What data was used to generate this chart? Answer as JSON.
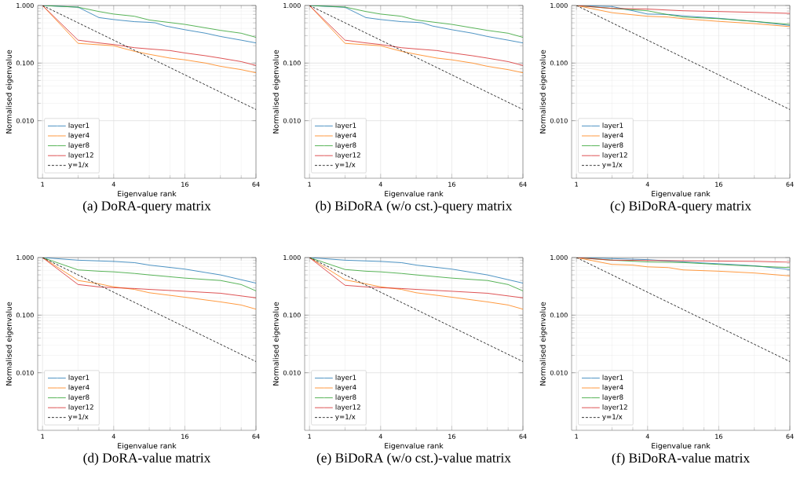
{
  "chart_data": [
    {
      "type": "line",
      "title": "(a) DoRA-query matrix",
      "xlabel": "Eigenvalue rank",
      "ylabel": "Normalised eigenvalue",
      "log": "xy",
      "grid": true,
      "legend": "bottom left",
      "xlim": [
        0.91,
        64
      ],
      "ylim": [
        0.001,
        1
      ],
      "xticks": [
        1,
        4,
        16,
        64
      ],
      "yticks": [
        {
          "value": 0.01,
          "label": "0.010"
        },
        {
          "value": 0.1,
          "label": "0.100"
        },
        {
          "value": 1,
          "label": "1.000"
        }
      ],
      "series": [
        {
          "name": "layer1",
          "color": "#1f77b4",
          "x": [
            1,
            2,
            3,
            4,
            6,
            8,
            9,
            11,
            16,
            24,
            32,
            48,
            64
          ],
          "values": [
            1.0,
            0.935,
            0.617,
            0.57,
            0.524,
            0.51,
            0.5,
            0.44,
            0.38,
            0.33,
            0.29,
            0.25,
            0.224
          ]
        },
        {
          "name": "layer4",
          "color": "#ff7f0e",
          "x": [
            1,
            2,
            4,
            6,
            8,
            12,
            16,
            24,
            32,
            48,
            64
          ],
          "values": [
            1.0,
            0.22,
            0.2,
            0.16,
            0.142,
            0.122,
            0.114,
            0.1,
            0.088,
            0.077,
            0.068
          ]
        },
        {
          "name": "layer8",
          "color": "#2ca02c",
          "x": [
            1,
            2,
            3,
            4,
            6,
            8,
            16,
            32,
            48,
            64
          ],
          "values": [
            1.0,
            0.935,
            0.786,
            0.71,
            0.65,
            0.56,
            0.47,
            0.37,
            0.33,
            0.28
          ]
        },
        {
          "name": "layer12",
          "color": "#d62728",
          "x": [
            1,
            2,
            3,
            4,
            6,
            8,
            12,
            16,
            24,
            32,
            48,
            64
          ],
          "values": [
            1.0,
            0.25,
            0.224,
            0.21,
            0.185,
            0.176,
            0.165,
            0.15,
            0.134,
            0.122,
            0.106,
            0.091
          ]
        },
        {
          "name": "y=1/x",
          "color": "#000000",
          "line_style": "dashed",
          "x": [
            1,
            64
          ],
          "values": [
            1.0,
            0.015625
          ]
        }
      ]
    },
    {
      "type": "line",
      "title": "(b) BiDoRA (w/o cst.)-query matrix",
      "xlabel": "Eigenvalue rank",
      "ylabel": "Normalised eigenvalue",
      "log": "xy",
      "grid": true,
      "legend": "bottom left",
      "xlim": [
        0.91,
        64
      ],
      "ylim": [
        0.001,
        1
      ],
      "xticks": [
        1,
        4,
        16,
        64
      ],
      "yticks": [
        {
          "value": 0.01,
          "label": "0.010"
        },
        {
          "value": 0.1,
          "label": "0.100"
        },
        {
          "value": 1,
          "label": "1.000"
        }
      ],
      "series": [
        {
          "name": "layer1",
          "color": "#1f77b4",
          "x": [
            1,
            2,
            3,
            4,
            6,
            8,
            9,
            11,
            16,
            24,
            32,
            48,
            64
          ],
          "values": [
            1.0,
            0.93,
            0.617,
            0.57,
            0.524,
            0.51,
            0.5,
            0.44,
            0.38,
            0.33,
            0.29,
            0.25,
            0.224
          ]
        },
        {
          "name": "layer4",
          "color": "#ff7f0e",
          "x": [
            1,
            2,
            4,
            6,
            8,
            12,
            16,
            24,
            32,
            48,
            64
          ],
          "values": [
            1.0,
            0.22,
            0.2,
            0.16,
            0.142,
            0.122,
            0.114,
            0.1,
            0.088,
            0.077,
            0.068
          ]
        },
        {
          "name": "layer8",
          "color": "#2ca02c",
          "x": [
            1,
            2,
            3,
            4,
            6,
            8,
            16,
            32,
            48,
            64
          ],
          "values": [
            1.0,
            0.94,
            0.786,
            0.71,
            0.65,
            0.56,
            0.47,
            0.37,
            0.33,
            0.28
          ]
        },
        {
          "name": "layer12",
          "color": "#d62728",
          "x": [
            1,
            2,
            3,
            4,
            6,
            8,
            12,
            16,
            24,
            32,
            48,
            64
          ],
          "values": [
            1.0,
            0.25,
            0.224,
            0.21,
            0.185,
            0.176,
            0.165,
            0.15,
            0.134,
            0.122,
            0.106,
            0.091
          ]
        },
        {
          "name": "y=1/x",
          "color": "#000000",
          "line_style": "dashed",
          "x": [
            1,
            64
          ],
          "values": [
            1.0,
            0.015625
          ]
        }
      ]
    },
    {
      "type": "line",
      "title": "(c) BiDoRA-query matrix",
      "xlabel": "Eigenvalue rank",
      "ylabel": "Normalised eigenvalue",
      "log": "xy",
      "grid": true,
      "legend": "bottom left",
      "xlim": [
        0.91,
        64
      ],
      "ylim": [
        0.001,
        1
      ],
      "xticks": [
        1,
        4,
        16,
        64
      ],
      "yticks": [
        {
          "value": 0.01,
          "label": "0.010"
        },
        {
          "value": 0.1,
          "label": "0.100"
        },
        {
          "value": 1,
          "label": "1.000"
        }
      ],
      "series": [
        {
          "name": "layer1",
          "color": "#1f77b4",
          "x": [
            1,
            2,
            3,
            4,
            6,
            8,
            16,
            32,
            64
          ],
          "values": [
            1.0,
            0.96,
            0.81,
            0.71,
            0.7,
            0.66,
            0.6,
            0.53,
            0.45
          ]
        },
        {
          "name": "layer4",
          "color": "#ff7f0e",
          "x": [
            1,
            2,
            4,
            6,
            8,
            16,
            32,
            64
          ],
          "values": [
            1.0,
            0.75,
            0.65,
            0.63,
            0.59,
            0.53,
            0.485,
            0.43
          ]
        },
        {
          "name": "layer8",
          "color": "#2ca02c",
          "x": [
            1,
            2,
            4,
            6,
            8,
            16,
            32,
            64
          ],
          "values": [
            1.0,
            0.89,
            0.81,
            0.69,
            0.63,
            0.59,
            0.53,
            0.47
          ]
        },
        {
          "name": "layer12",
          "color": "#d62728",
          "x": [
            1,
            2,
            4,
            8,
            16,
            32,
            64
          ],
          "values": [
            1.0,
            0.89,
            0.865,
            0.81,
            0.786,
            0.76,
            0.73
          ]
        },
        {
          "name": "y=1/x",
          "color": "#000000",
          "line_style": "dashed",
          "x": [
            1,
            64
          ],
          "values": [
            1.0,
            0.015625
          ]
        }
      ]
    },
    {
      "type": "line",
      "title": "(d) DoRA-value matrix",
      "xlabel": "Eigenvalue rank",
      "ylabel": "Normalised eigenvalue",
      "log": "xy",
      "grid": true,
      "legend": "bottom left",
      "xlim": [
        0.91,
        64
      ],
      "ylim": [
        0.001,
        1
      ],
      "xticks": [
        1,
        4,
        16,
        64
      ],
      "yticks": [
        {
          "value": 0.01,
          "label": "0.010"
        },
        {
          "value": 0.1,
          "label": "0.100"
        },
        {
          "value": 1,
          "label": "1.000"
        }
      ],
      "series": [
        {
          "name": "layer1",
          "color": "#1f77b4",
          "x": [
            1,
            2,
            4,
            6,
            8,
            16,
            24,
            32,
            64
          ],
          "values": [
            1.0,
            0.9,
            0.857,
            0.816,
            0.74,
            0.63,
            0.55,
            0.5,
            0.36
          ]
        },
        {
          "name": "layer4",
          "color": "#ff7f0e",
          "x": [
            1,
            2,
            3,
            4,
            6,
            8,
            16,
            32,
            48,
            64
          ],
          "values": [
            1.0,
            0.4,
            0.35,
            0.31,
            0.28,
            0.245,
            0.205,
            0.17,
            0.15,
            0.127
          ]
        },
        {
          "name": "layer8",
          "color": "#2ca02c",
          "x": [
            1,
            2,
            3,
            4,
            6,
            8,
            16,
            32,
            48,
            64
          ],
          "values": [
            1.0,
            0.61,
            0.58,
            0.565,
            0.53,
            0.5,
            0.44,
            0.4,
            0.34,
            0.264
          ]
        },
        {
          "name": "layer12",
          "color": "#d62728",
          "x": [
            1,
            2,
            3,
            4,
            6,
            8,
            16,
            32,
            64
          ],
          "values": [
            1.0,
            0.34,
            0.31,
            0.3,
            0.29,
            0.28,
            0.26,
            0.24,
            0.2
          ]
        },
        {
          "name": "y=1/x",
          "color": "#000000",
          "line_style": "dashed",
          "x": [
            1,
            64
          ],
          "values": [
            1.0,
            0.015625
          ]
        }
      ]
    },
    {
      "type": "line",
      "title": "(e) BiDoRA (w/o cst.)-value matrix",
      "xlabel": "Eigenvalue rank",
      "ylabel": "Normalised eigenvalue",
      "log": "xy",
      "grid": true,
      "legend": "bottom left",
      "xlim": [
        0.91,
        64
      ],
      "ylim": [
        0.001,
        1
      ],
      "xticks": [
        1,
        4,
        16,
        64
      ],
      "yticks": [
        {
          "value": 0.01,
          "label": "0.010"
        },
        {
          "value": 0.1,
          "label": "0.100"
        },
        {
          "value": 1,
          "label": "1.000"
        }
      ],
      "series": [
        {
          "name": "layer1",
          "color": "#1f77b4",
          "x": [
            1,
            2,
            4,
            6,
            8,
            16,
            24,
            32,
            64
          ],
          "values": [
            1.0,
            0.9,
            0.857,
            0.816,
            0.74,
            0.63,
            0.55,
            0.5,
            0.36
          ]
        },
        {
          "name": "layer4",
          "color": "#ff7f0e",
          "x": [
            1,
            2,
            3,
            4,
            6,
            8,
            16,
            32,
            48,
            64
          ],
          "values": [
            1.0,
            0.41,
            0.35,
            0.31,
            0.28,
            0.245,
            0.205,
            0.17,
            0.15,
            0.127
          ]
        },
        {
          "name": "layer8",
          "color": "#2ca02c",
          "x": [
            1,
            2,
            3,
            4,
            6,
            8,
            16,
            32,
            48,
            64
          ],
          "values": [
            1.0,
            0.62,
            0.58,
            0.565,
            0.53,
            0.5,
            0.44,
            0.4,
            0.34,
            0.264
          ]
        },
        {
          "name": "layer12",
          "color": "#d62728",
          "x": [
            1,
            2,
            3,
            4,
            6,
            8,
            16,
            32,
            64
          ],
          "values": [
            1.0,
            0.33,
            0.31,
            0.3,
            0.29,
            0.28,
            0.26,
            0.24,
            0.2
          ]
        },
        {
          "name": "y=1/x",
          "color": "#000000",
          "line_style": "dashed",
          "x": [
            1,
            64
          ],
          "values": [
            1.0,
            0.015625
          ]
        }
      ]
    },
    {
      "type": "line",
      "title": "(f) BiDoRA-value matrix",
      "xlabel": "Eigenvalue rank",
      "ylabel": "Normalised eigenvalue",
      "log": "xy",
      "grid": true,
      "legend": "bottom left",
      "xlim": [
        0.91,
        64
      ],
      "ylim": [
        0.001,
        1
      ],
      "xticks": [
        1,
        4,
        16,
        64
      ],
      "yticks": [
        {
          "value": 0.01,
          "label": "0.010"
        },
        {
          "value": 0.1,
          "label": "0.100"
        },
        {
          "value": 1,
          "label": "1.000"
        }
      ],
      "series": [
        {
          "name": "layer1",
          "color": "#1f77b4",
          "x": [
            1,
            2,
            4,
            8,
            16,
            32,
            64
          ],
          "values": [
            1.0,
            0.96,
            0.92,
            0.84,
            0.78,
            0.72,
            0.62
          ]
        },
        {
          "name": "layer4",
          "color": "#ff7f0e",
          "x": [
            1,
            2,
            3,
            4,
            6,
            8,
            16,
            32,
            64
          ],
          "values": [
            1.0,
            0.76,
            0.74,
            0.69,
            0.67,
            0.61,
            0.58,
            0.54,
            0.48
          ]
        },
        {
          "name": "layer8",
          "color": "#2ca02c",
          "x": [
            1,
            2,
            4,
            8,
            16,
            32,
            64
          ],
          "values": [
            1.0,
            0.9,
            0.84,
            0.82,
            0.76,
            0.71,
            0.67
          ]
        },
        {
          "name": "layer12",
          "color": "#d62728",
          "x": [
            1,
            2,
            8,
            16,
            32,
            64
          ],
          "values": [
            1.0,
            0.9,
            0.88,
            0.87,
            0.86,
            0.83
          ]
        },
        {
          "name": "y=1/x",
          "color": "#000000",
          "line_style": "dashed",
          "x": [
            1,
            64
          ],
          "values": [
            1.0,
            0.015625
          ]
        }
      ]
    }
  ]
}
